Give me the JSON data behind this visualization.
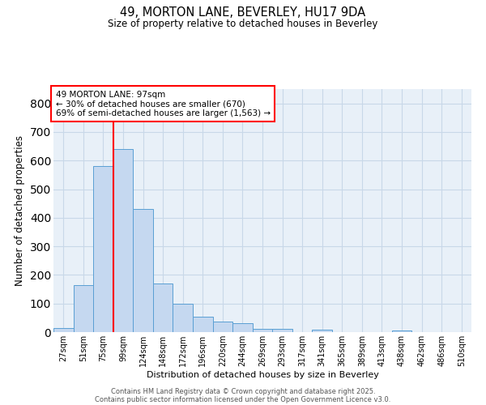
{
  "title1": "49, MORTON LANE, BEVERLEY, HU17 9DA",
  "title2": "Size of property relative to detached houses in Beverley",
  "xlabel": "Distribution of detached houses by size in Beverley",
  "ylabel": "Number of detached properties",
  "bin_labels": [
    "27sqm",
    "51sqm",
    "75sqm",
    "99sqm",
    "124sqm",
    "148sqm",
    "172sqm",
    "196sqm",
    "220sqm",
    "244sqm",
    "269sqm",
    "293sqm",
    "317sqm",
    "341sqm",
    "365sqm",
    "389sqm",
    "413sqm",
    "438sqm",
    "462sqm",
    "486sqm",
    "510sqm"
  ],
  "bar_values": [
    15,
    165,
    580,
    640,
    430,
    170,
    100,
    55,
    38,
    30,
    12,
    10,
    0,
    8,
    0,
    0,
    0,
    5,
    0,
    0,
    0
  ],
  "bar_color": "#c5d8f0",
  "bar_edge_color": "#5a9fd4",
  "annotation_text": "49 MORTON LANE: 97sqm\n← 30% of detached houses are smaller (670)\n69% of semi-detached houses are larger (1,563) →",
  "annotation_box_color": "white",
  "annotation_box_edge_color": "red",
  "ylim": [
    0,
    850
  ],
  "yticks": [
    0,
    100,
    200,
    300,
    400,
    500,
    600,
    700,
    800
  ],
  "grid_color": "#c8d8e8",
  "bg_color": "#e8f0f8",
  "footer1": "Contains HM Land Registry data © Crown copyright and database right 2025.",
  "footer2": "Contains public sector information licensed under the Open Government Licence v3.0."
}
